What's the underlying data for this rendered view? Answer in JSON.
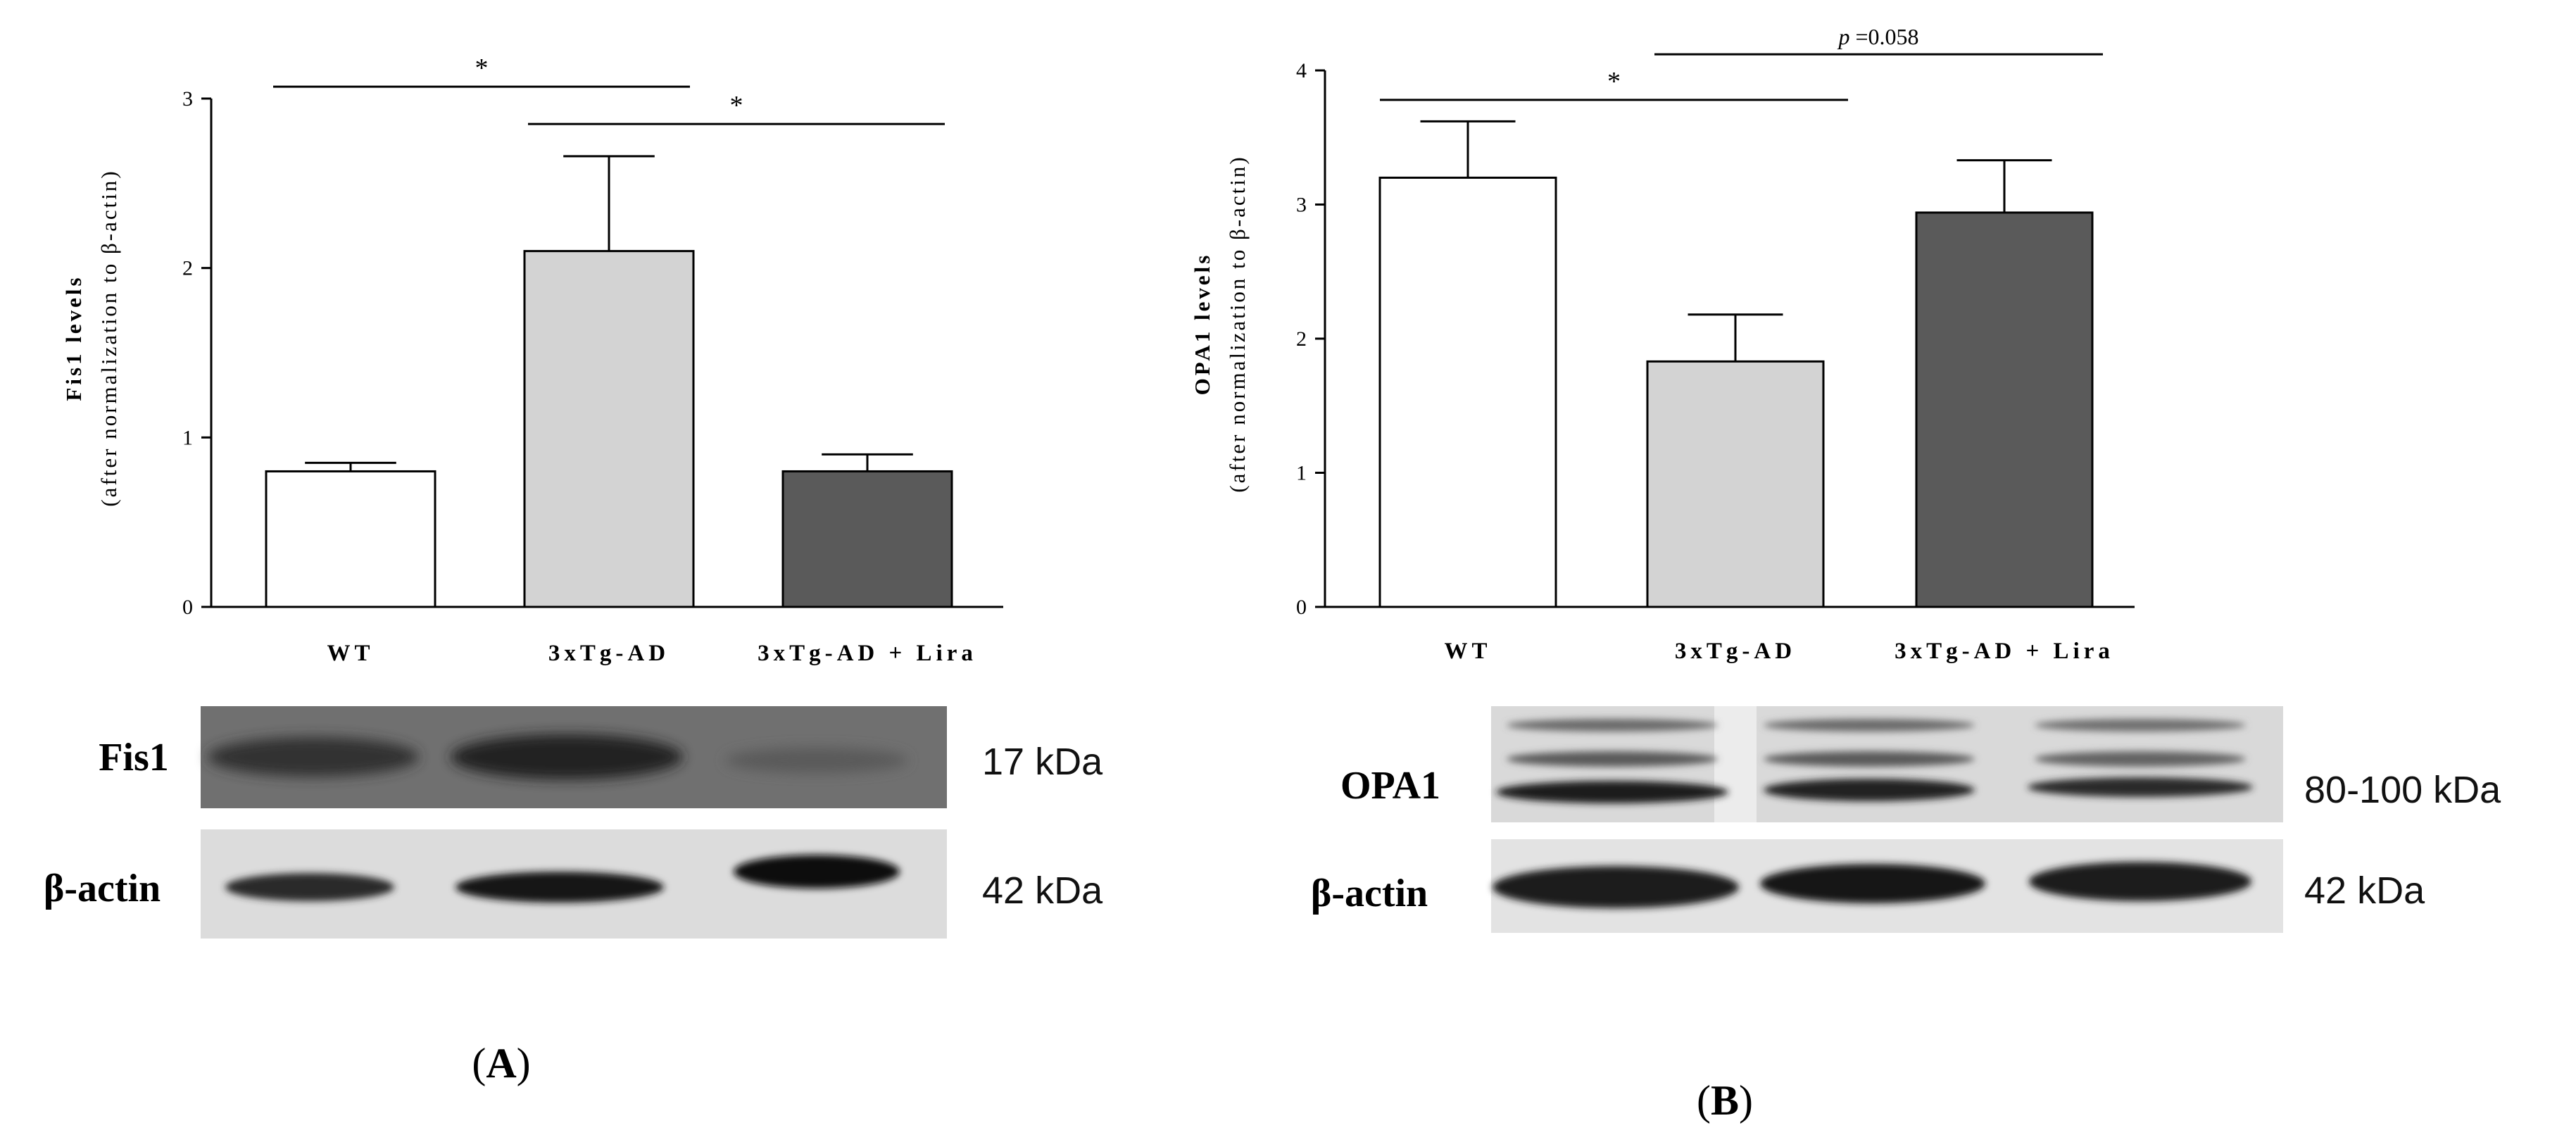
{
  "chart_data": [
    {
      "type": "bar",
      "panel_label": "(A)",
      "panel_letter": "A",
      "title": "",
      "ylabel": "Fis1 levels",
      "ylabel_sub": "(after normalization to β-actin)",
      "xlabel": "",
      "ylim": [
        0,
        3
      ],
      "yticks": [
        "0",
        "1",
        "2",
        "3"
      ],
      "categories": [
        "WT",
        "3xTg-AD",
        "3xTg-AD + Lira"
      ],
      "values": [
        0.8,
        2.1,
        0.8
      ],
      "errors": [
        0.05,
        0.56,
        0.1
      ],
      "bar_colors": [
        "#ffffff",
        "#d3d3d3",
        "#5a5a5a"
      ],
      "significance": [
        {
          "from": 0,
          "to": 1,
          "label": "*",
          "level": 3.07
        },
        {
          "from": 1,
          "to": 2,
          "label": "*",
          "level": 2.85
        }
      ],
      "blot": {
        "rows": [
          {
            "protein": "Fis1",
            "size": "17 kDa"
          },
          {
            "protein": "β-actin",
            "size": "42 kDa"
          }
        ]
      }
    },
    {
      "type": "bar",
      "panel_label": "(B)",
      "panel_letter": "B",
      "title": "",
      "ylabel": "OPA1 levels",
      "ylabel_sub": "(after normalization to β-actin)",
      "xlabel": "",
      "ylim": [
        0,
        4
      ],
      "yticks": [
        "0",
        "1",
        "2",
        "3",
        "4"
      ],
      "categories": [
        "WT",
        "3xTg-AD",
        "3xTg-AD + Lira"
      ],
      "values": [
        3.2,
        1.83,
        2.94
      ],
      "errors": [
        0.42,
        0.35,
        0.39
      ],
      "bar_colors": [
        "#ffffff",
        "#d3d3d3",
        "#5a5a5a"
      ],
      "significance": [
        {
          "from": 0,
          "to": 1,
          "label": "*",
          "level": 3.78
        },
        {
          "from": 1,
          "to": 2,
          "label_italic": "p",
          "label_rest": " =0.058",
          "level": 4.12
        }
      ],
      "blot": {
        "rows": [
          {
            "protein": "OPA1",
            "size": "80-100 kDa"
          },
          {
            "protein": "β-actin",
            "size": "42 kDa"
          }
        ]
      }
    }
  ]
}
